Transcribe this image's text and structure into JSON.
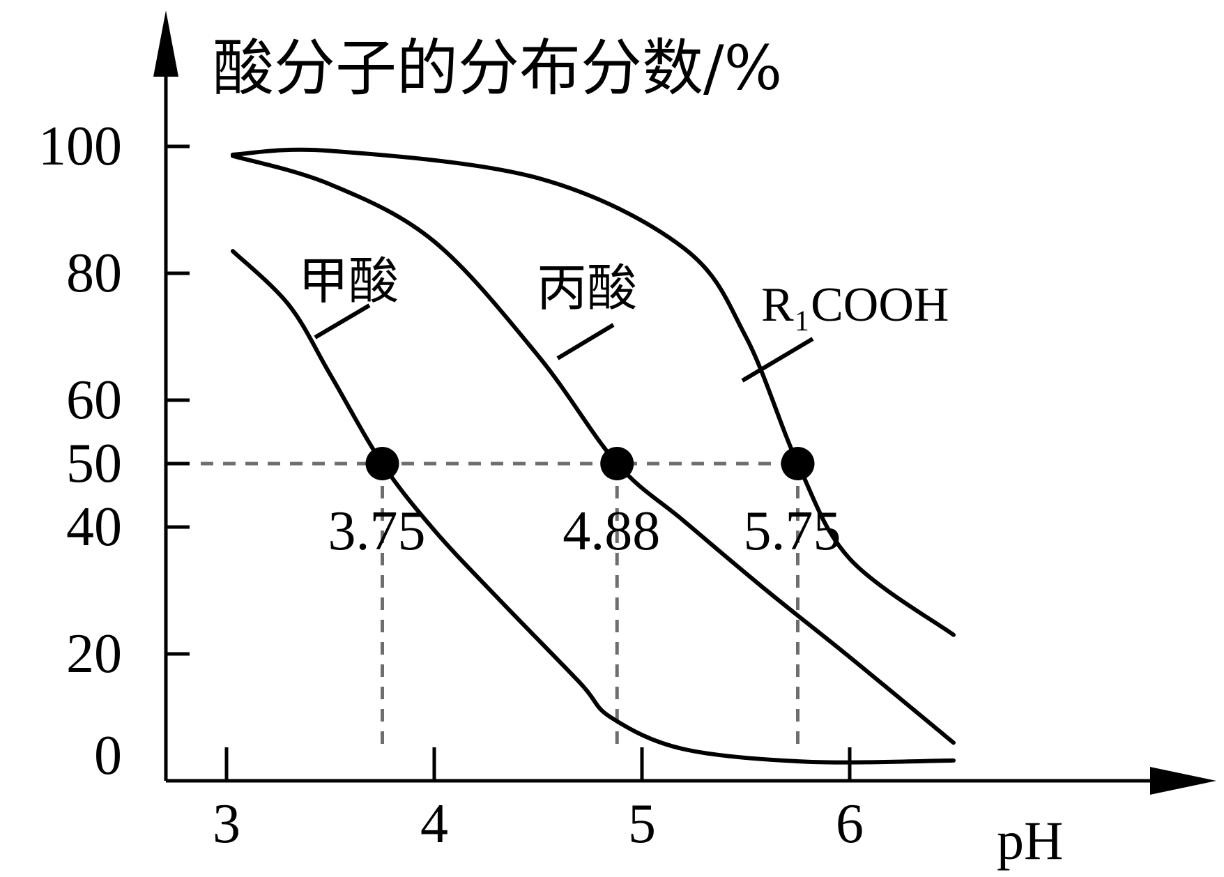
{
  "chart_data": {
    "type": "line",
    "ylabel": "酸分子的分布分数/%",
    "xlabel": "pH",
    "x_ticks": [
      "3",
      "4",
      "5",
      "6"
    ],
    "y_ticks": [
      "100",
      "80",
      "60",
      "50",
      "40",
      "20",
      "0"
    ],
    "xlim": [
      2.7,
      6.9
    ],
    "ylim": [
      0,
      100
    ],
    "grid": false,
    "reference_line_y": 50,
    "series": [
      {
        "name": "甲酸",
        "color": "#000000",
        "points": [
          [
            3.03,
            83.5
          ],
          [
            3.3,
            75
          ],
          [
            3.5,
            64
          ],
          [
            3.75,
            50
          ],
          [
            4.0,
            39.5
          ],
          [
            4.3,
            29
          ],
          [
            4.7,
            15.5
          ],
          [
            4.85,
            10
          ],
          [
            5.2,
            5
          ],
          [
            5.8,
            3
          ],
          [
            6.5,
            3.2
          ]
        ]
      },
      {
        "name": "丙酸",
        "color": "#000000",
        "points": [
          [
            3.03,
            98.5
          ],
          [
            3.5,
            94
          ],
          [
            4.0,
            85
          ],
          [
            4.5,
            67
          ],
          [
            4.88,
            50
          ],
          [
            5.2,
            41
          ],
          [
            5.6,
            30
          ],
          [
            6.0,
            19.5
          ],
          [
            6.5,
            6
          ]
        ]
      },
      {
        "name": "R₁COOH",
        "color": "#000000",
        "points": [
          [
            3.03,
            98.7
          ],
          [
            3.5,
            99.3
          ],
          [
            4.5,
            95
          ],
          [
            5.2,
            84
          ],
          [
            5.5,
            70
          ],
          [
            5.75,
            50
          ],
          [
            6.0,
            35
          ],
          [
            6.5,
            23
          ]
        ]
      }
    ],
    "annotations": [
      {
        "text": "3.75",
        "x": 3.75,
        "y": 50
      },
      {
        "text": "4.88",
        "x": 4.88,
        "y": 50
      },
      {
        "text": "5.75",
        "x": 5.75,
        "y": 50
      }
    ]
  }
}
